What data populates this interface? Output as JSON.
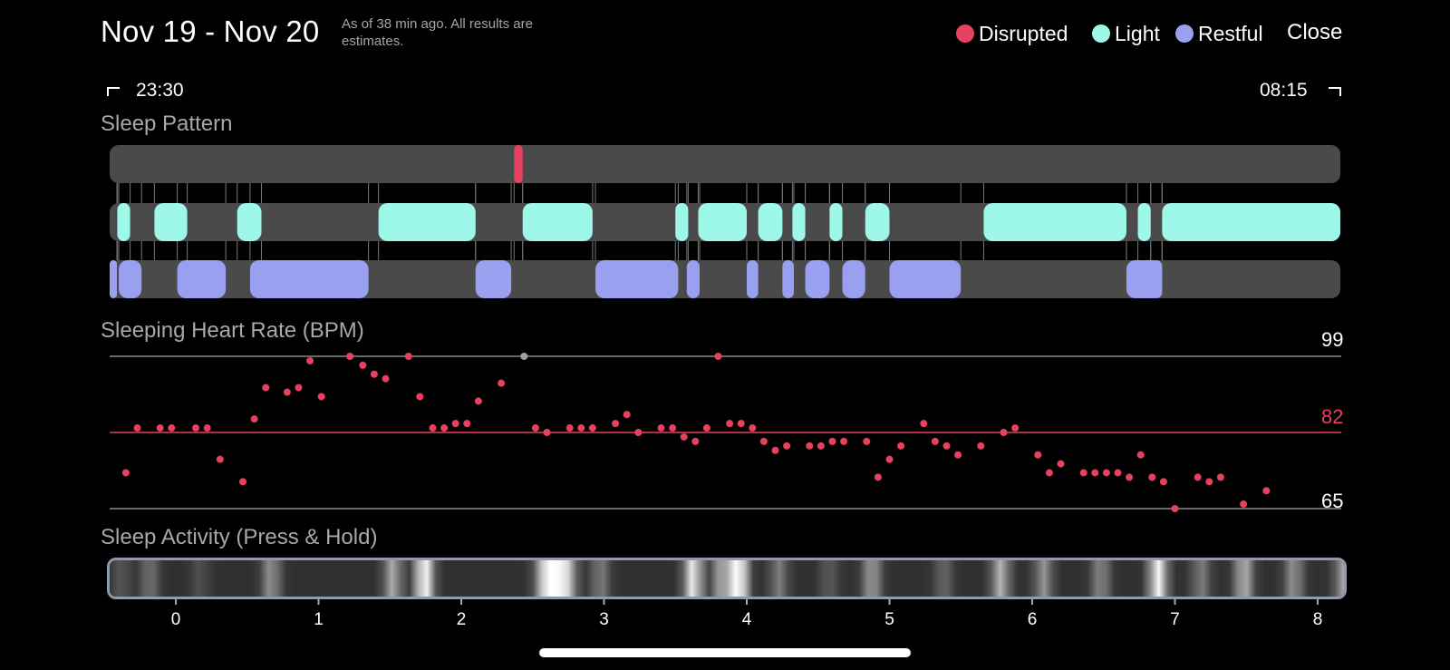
{
  "header": {
    "title": "Nov 19 - Nov 20",
    "subtitle": "As of 38 min ago. All results are estimates.",
    "close_label": "Close"
  },
  "legend": [
    {
      "label": "Disrupted",
      "color": "#e8405f"
    },
    {
      "label": "Light",
      "color": "#9ef8ea"
    },
    {
      "label": "Restful",
      "color": "#9aa0f0"
    }
  ],
  "time_range": {
    "start": "23:30",
    "end": "08:15"
  },
  "sleep_pattern": {
    "title": "Sleep Pattern",
    "track_color": "#4a4a4a",
    "disrupted": [
      [
        2.37,
        2.43
      ]
    ],
    "light": [
      [
        -0.41,
        -0.32
      ],
      [
        -0.15,
        0.08
      ],
      [
        0.43,
        0.6
      ],
      [
        1.42,
        2.1
      ],
      [
        2.43,
        2.92
      ],
      [
        3.5,
        3.59
      ],
      [
        3.66,
        4.0
      ],
      [
        4.08,
        4.25
      ],
      [
        4.32,
        4.41
      ],
      [
        4.58,
        4.67
      ],
      [
        4.83,
        5.0
      ],
      [
        5.66,
        6.66
      ],
      [
        6.74,
        6.83
      ],
      [
        6.91,
        8.24
      ]
    ],
    "restful": [
      [
        -0.57,
        -0.48
      ],
      [
        -0.4,
        -0.24
      ],
      [
        0.01,
        0.35
      ],
      [
        0.52,
        1.35
      ],
      [
        2.1,
        2.35
      ],
      [
        2.94,
        3.52
      ],
      [
        3.58,
        3.67
      ],
      [
        4.0,
        4.08
      ],
      [
        4.25,
        4.33
      ],
      [
        4.41,
        4.58
      ],
      [
        4.67,
        4.83
      ],
      [
        5.0,
        5.5
      ],
      [
        6.66,
        6.91
      ],
      [
        6.83,
        6.91
      ]
    ]
  },
  "heart_rate": {
    "title": "Sleeping Heart Rate (BPM)",
    "max": 99,
    "avg": 82,
    "min": 65,
    "avg_color": "#e8405f"
  },
  "activity": {
    "title": "Sleep Activity (Press & Hold)",
    "x_ticks": [
      "0",
      "1",
      "2",
      "3",
      "4",
      "5",
      "6",
      "7",
      "8"
    ]
  },
  "chart_data": {
    "type": "scatter",
    "title": "Sleeping Heart Rate (BPM)",
    "ylim": [
      65,
      99
    ],
    "points": [
      [
        -0.35,
        73
      ],
      [
        -0.27,
        83
      ],
      [
        -0.11,
        83
      ],
      [
        -0.03,
        83
      ],
      [
        0.14,
        83
      ],
      [
        0.22,
        83
      ],
      [
        0.31,
        76
      ],
      [
        0.47,
        71
      ],
      [
        0.55,
        85
      ],
      [
        0.63,
        92
      ],
      [
        0.78,
        91
      ],
      [
        0.86,
        92
      ],
      [
        0.94,
        98
      ],
      [
        1.02,
        90
      ],
      [
        1.22,
        99
      ],
      [
        1.31,
        97
      ],
      [
        1.39,
        95
      ],
      [
        1.47,
        94
      ],
      [
        1.63,
        99
      ],
      [
        1.71,
        90
      ],
      [
        1.8,
        83
      ],
      [
        1.88,
        83
      ],
      [
        1.96,
        84
      ],
      [
        2.04,
        84
      ],
      [
        2.12,
        89
      ],
      [
        2.28,
        93
      ],
      [
        2.44,
        99
      ],
      [
        2.52,
        83
      ],
      [
        2.6,
        82
      ],
      [
        2.76,
        83
      ],
      [
        2.84,
        83
      ],
      [
        2.92,
        83
      ],
      [
        3.08,
        84
      ],
      [
        3.16,
        86
      ],
      [
        3.24,
        82
      ],
      [
        3.4,
        83
      ],
      [
        3.48,
        83
      ],
      [
        3.56,
        81
      ],
      [
        3.64,
        80
      ],
      [
        3.72,
        83
      ],
      [
        3.8,
        99
      ],
      [
        3.88,
        84
      ],
      [
        3.96,
        84
      ],
      [
        4.04,
        83
      ],
      [
        4.12,
        80
      ],
      [
        4.2,
        78
      ],
      [
        4.28,
        79
      ],
      [
        4.44,
        79
      ],
      [
        4.52,
        79
      ],
      [
        4.6,
        80
      ],
      [
        4.68,
        80
      ],
      [
        4.84,
        80
      ],
      [
        4.92,
        72
      ],
      [
        5.0,
        76
      ],
      [
        5.08,
        79
      ],
      [
        5.24,
        84
      ],
      [
        5.32,
        80
      ],
      [
        5.4,
        79
      ],
      [
        5.48,
        77
      ],
      [
        5.64,
        79
      ],
      [
        5.8,
        82
      ],
      [
        5.88,
        83
      ],
      [
        6.04,
        77
      ],
      [
        6.12,
        73
      ],
      [
        6.2,
        75
      ],
      [
        6.36,
        73
      ],
      [
        6.44,
        73
      ],
      [
        6.52,
        73
      ],
      [
        6.6,
        73
      ],
      [
        6.68,
        72
      ],
      [
        6.76,
        77
      ],
      [
        6.84,
        72
      ],
      [
        6.92,
        71
      ],
      [
        7.0,
        65
      ],
      [
        7.16,
        72
      ],
      [
        7.24,
        71
      ],
      [
        7.32,
        72
      ],
      [
        7.48,
        66
      ],
      [
        7.64,
        69
      ]
    ],
    "reference_lines": [
      {
        "label": "99",
        "value": 99
      },
      {
        "label": "82",
        "value": 82
      },
      {
        "label": "65",
        "value": 65
      }
    ],
    "x_ticks": [
      0,
      1,
      2,
      3,
      4,
      5,
      6,
      7,
      8
    ]
  }
}
